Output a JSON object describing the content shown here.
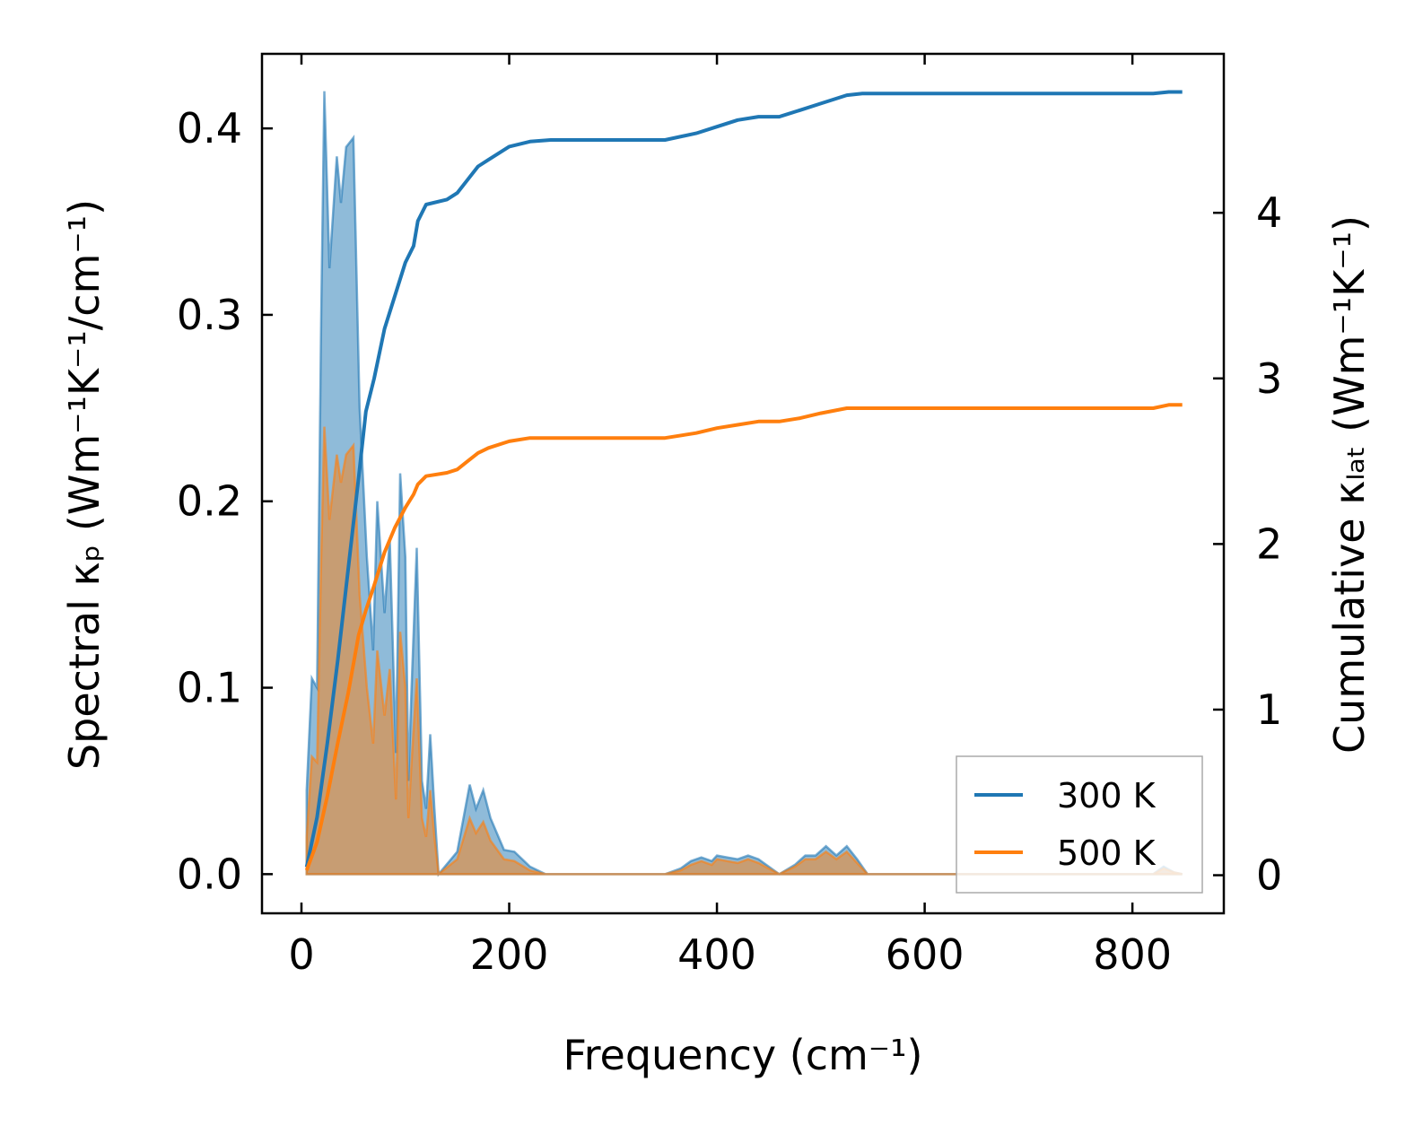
{
  "chart_data": {
    "type": "area",
    "xlabel": "Frequency (cm⁻¹)",
    "ylabel_left": "Spectral κₚ (Wm⁻¹K⁻¹/cm⁻¹)",
    "ylabel_right": "Cumulative κₗₐₜ (Wm⁻¹K⁻¹)",
    "xlim": [
      -38,
      888
    ],
    "ylim_left": [
      -0.021,
      0.44
    ],
    "ylim_right": [
      -0.23,
      4.96
    ],
    "xticks": [
      0,
      200,
      400,
      600,
      800
    ],
    "xtick_labels": [
      "0",
      "200",
      "400",
      "600",
      "800"
    ],
    "yticks_left": [
      0.0,
      0.1,
      0.2,
      0.3,
      0.4
    ],
    "ytick_labels_left": [
      "0.0",
      "0.1",
      "0.2",
      "0.3",
      "0.4"
    ],
    "yticks_right": [
      0,
      1,
      2,
      3,
      4
    ],
    "ytick_labels_right": [
      "0",
      "1",
      "2",
      "3",
      "4"
    ],
    "legend": {
      "position": "lower-right",
      "entries": [
        "300 K",
        "500 K"
      ]
    },
    "series": [
      {
        "name": "300 K",
        "color": "#1f77b4",
        "spectral": [
          [
            5,
            0.045
          ],
          [
            10,
            0.105
          ],
          [
            15,
            0.1
          ],
          [
            19,
            0.3
          ],
          [
            22,
            0.42
          ],
          [
            27,
            0.325
          ],
          [
            34,
            0.385
          ],
          [
            38,
            0.36
          ],
          [
            43,
            0.39
          ],
          [
            50,
            0.395
          ],
          [
            56,
            0.25
          ],
          [
            63,
            0.17
          ],
          [
            69,
            0.12
          ],
          [
            73,
            0.2
          ],
          [
            80,
            0.14
          ],
          [
            85,
            0.18
          ],
          [
            91,
            0.065
          ],
          [
            95,
            0.215
          ],
          [
            100,
            0.17
          ],
          [
            103,
            0.05
          ],
          [
            106,
            0.1
          ],
          [
            111,
            0.175
          ],
          [
            116,
            0.05
          ],
          [
            120,
            0.035
          ],
          [
            124,
            0.075
          ],
          [
            128,
            0.035
          ],
          [
            132,
            0.0
          ],
          [
            150,
            0.012
          ],
          [
            162,
            0.048
          ],
          [
            168,
            0.035
          ],
          [
            175,
            0.045
          ],
          [
            182,
            0.03
          ],
          [
            195,
            0.013
          ],
          [
            205,
            0.012
          ],
          [
            220,
            0.004
          ],
          [
            235,
            0.0
          ],
          [
            350,
            0.0
          ],
          [
            365,
            0.003
          ],
          [
            375,
            0.007
          ],
          [
            385,
            0.009
          ],
          [
            395,
            0.007
          ],
          [
            400,
            0.01
          ],
          [
            410,
            0.009
          ],
          [
            420,
            0.008
          ],
          [
            430,
            0.01
          ],
          [
            440,
            0.008
          ],
          [
            450,
            0.004
          ],
          [
            460,
            0.0
          ],
          [
            475,
            0.005
          ],
          [
            485,
            0.01
          ],
          [
            495,
            0.01
          ],
          [
            505,
            0.015
          ],
          [
            515,
            0.01
          ],
          [
            525,
            0.015
          ],
          [
            535,
            0.008
          ],
          [
            545,
            0.0
          ],
          [
            820,
            0.0
          ],
          [
            830,
            0.004
          ],
          [
            840,
            0.001
          ],
          [
            848,
            0.0
          ]
        ],
        "cumulative": [
          [
            5,
            0.05
          ],
          [
            15,
            0.35
          ],
          [
            25,
            0.8
          ],
          [
            35,
            1.3
          ],
          [
            45,
            1.85
          ],
          [
            55,
            2.4
          ],
          [
            62,
            2.8
          ],
          [
            70,
            3.0
          ],
          [
            80,
            3.3
          ],
          [
            90,
            3.5
          ],
          [
            100,
            3.7
          ],
          [
            108,
            3.8
          ],
          [
            112,
            3.95
          ],
          [
            120,
            4.05
          ],
          [
            140,
            4.08
          ],
          [
            150,
            4.12
          ],
          [
            160,
            4.2
          ],
          [
            170,
            4.28
          ],
          [
            180,
            4.32
          ],
          [
            200,
            4.4
          ],
          [
            220,
            4.43
          ],
          [
            240,
            4.44
          ],
          [
            350,
            4.44
          ],
          [
            380,
            4.48
          ],
          [
            400,
            4.52
          ],
          [
            420,
            4.56
          ],
          [
            440,
            4.58
          ],
          [
            460,
            4.58
          ],
          [
            480,
            4.62
          ],
          [
            500,
            4.66
          ],
          [
            525,
            4.71
          ],
          [
            540,
            4.72
          ],
          [
            820,
            4.72
          ],
          [
            835,
            4.73
          ],
          [
            848,
            4.73
          ]
        ]
      },
      {
        "name": "500 K",
        "color": "#ff7f0e",
        "spectral": [
          [
            5,
            0.02
          ],
          [
            10,
            0.063
          ],
          [
            15,
            0.06
          ],
          [
            19,
            0.17
          ],
          [
            22,
            0.24
          ],
          [
            27,
            0.19
          ],
          [
            34,
            0.225
          ],
          [
            38,
            0.21
          ],
          [
            43,
            0.225
          ],
          [
            50,
            0.23
          ],
          [
            56,
            0.15
          ],
          [
            63,
            0.1
          ],
          [
            69,
            0.07
          ],
          [
            73,
            0.12
          ],
          [
            80,
            0.085
          ],
          [
            85,
            0.11
          ],
          [
            91,
            0.04
          ],
          [
            95,
            0.13
          ],
          [
            100,
            0.1
          ],
          [
            103,
            0.03
          ],
          [
            106,
            0.06
          ],
          [
            111,
            0.105
          ],
          [
            116,
            0.03
          ],
          [
            120,
            0.02
          ],
          [
            124,
            0.045
          ],
          [
            128,
            0.02
          ],
          [
            132,
            0.0
          ],
          [
            150,
            0.008
          ],
          [
            162,
            0.03
          ],
          [
            168,
            0.022
          ],
          [
            175,
            0.028
          ],
          [
            182,
            0.018
          ],
          [
            195,
            0.008
          ],
          [
            205,
            0.007
          ],
          [
            220,
            0.002
          ],
          [
            235,
            0.0
          ],
          [
            350,
            0.0
          ],
          [
            365,
            0.002
          ],
          [
            375,
            0.005
          ],
          [
            385,
            0.007
          ],
          [
            395,
            0.005
          ],
          [
            400,
            0.008
          ],
          [
            410,
            0.007
          ],
          [
            420,
            0.006
          ],
          [
            430,
            0.008
          ],
          [
            440,
            0.006
          ],
          [
            450,
            0.003
          ],
          [
            460,
            0.0
          ],
          [
            475,
            0.004
          ],
          [
            485,
            0.008
          ],
          [
            495,
            0.008
          ],
          [
            505,
            0.012
          ],
          [
            515,
            0.008
          ],
          [
            525,
            0.012
          ],
          [
            535,
            0.006
          ],
          [
            545,
            0.0
          ],
          [
            820,
            0.0
          ],
          [
            830,
            0.003
          ],
          [
            840,
            0.001
          ],
          [
            848,
            0.0
          ]
        ],
        "cumulative": [
          [
            5,
            0.03
          ],
          [
            15,
            0.2
          ],
          [
            25,
            0.48
          ],
          [
            35,
            0.8
          ],
          [
            45,
            1.1
          ],
          [
            55,
            1.45
          ],
          [
            62,
            1.6
          ],
          [
            70,
            1.75
          ],
          [
            80,
            1.95
          ],
          [
            90,
            2.1
          ],
          [
            100,
            2.22
          ],
          [
            108,
            2.3
          ],
          [
            112,
            2.36
          ],
          [
            120,
            2.41
          ],
          [
            140,
            2.43
          ],
          [
            150,
            2.45
          ],
          [
            160,
            2.5
          ],
          [
            170,
            2.55
          ],
          [
            180,
            2.58
          ],
          [
            200,
            2.62
          ],
          [
            220,
            2.64
          ],
          [
            240,
            2.64
          ],
          [
            350,
            2.64
          ],
          [
            380,
            2.67
          ],
          [
            400,
            2.7
          ],
          [
            420,
            2.72
          ],
          [
            440,
            2.74
          ],
          [
            460,
            2.74
          ],
          [
            480,
            2.76
          ],
          [
            500,
            2.79
          ],
          [
            525,
            2.82
          ],
          [
            540,
            2.82
          ],
          [
            820,
            2.82
          ],
          [
            835,
            2.84
          ],
          [
            848,
            2.84
          ]
        ]
      }
    ]
  }
}
